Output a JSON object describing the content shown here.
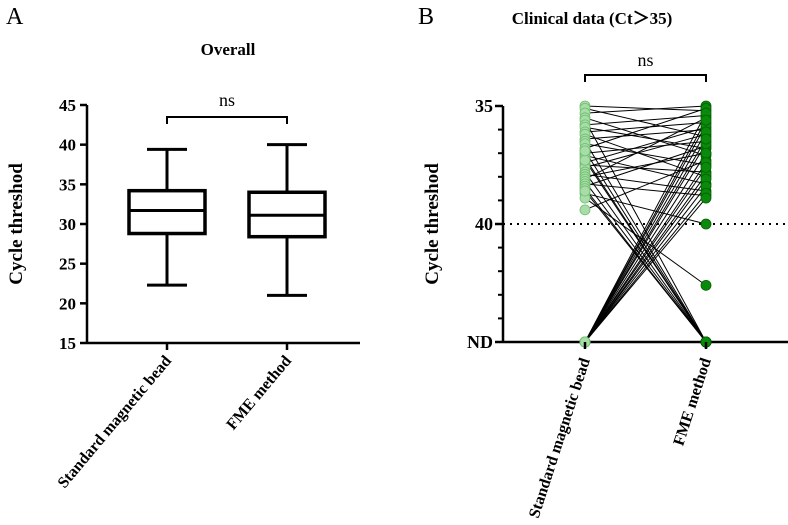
{
  "chart_data": [
    {
      "panel": "A",
      "type": "box",
      "title": "Overall",
      "ylabel": "Cycle threshod",
      "ylim": [
        15,
        45
      ],
      "yticks": [
        "15",
        "20",
        "25",
        "30",
        "35",
        "40",
        "45"
      ],
      "categories": [
        "Standard magnetic bead",
        "FME method"
      ],
      "boxes": [
        {
          "min": 22.3,
          "q1": 28.8,
          "median": 31.7,
          "q3": 34.2,
          "max": 39.4
        },
        {
          "min": 21.0,
          "q1": 28.4,
          "median": 31.1,
          "q3": 34.0,
          "max": 40.0
        }
      ],
      "significance": "ns"
    },
    {
      "panel": "B",
      "type": "paired-scatter",
      "title": "Clinical data (Ct＞35)",
      "ylabel": "Cycle threshod",
      "yaxis": {
        "top": 35,
        "reference": 40,
        "bottom_label": "ND",
        "inverted": true
      },
      "yticks": [
        "35",
        "40",
        "ND"
      ],
      "reference_line": 40,
      "categories": [
        "Standard magnetic bead",
        "FME method"
      ],
      "colors": [
        "#a8dca8",
        "#0a8a0a"
      ],
      "pairs": [
        [
          35.0,
          35.2
        ],
        [
          35.1,
          36.3
        ],
        [
          35.3,
          35.0
        ],
        [
          35.5,
          37.1
        ],
        [
          35.6,
          "ND"
        ],
        [
          35.8,
          35.4
        ],
        [
          35.9,
          36.8
        ],
        [
          36.1,
          35.7
        ],
        [
          36.2,
          38.0
        ],
        [
          36.4,
          36.0
        ],
        [
          36.5,
          "ND"
        ],
        [
          36.6,
          37.5
        ],
        [
          36.8,
          35.1
        ],
        [
          37.0,
          36.5
        ],
        [
          37.1,
          38.3
        ],
        [
          37.2,
          "ND"
        ],
        [
          37.4,
          35.9
        ],
        [
          37.5,
          37.8
        ],
        [
          37.6,
          36.2
        ],
        [
          37.8,
          "ND"
        ],
        [
          37.9,
          38.6
        ],
        [
          38.0,
          37.0
        ],
        [
          38.1,
          35.5
        ],
        [
          38.2,
          "ND"
        ],
        [
          38.3,
          38.8
        ],
        [
          38.4,
          36.7
        ],
        [
          38.5,
          "ND"
        ],
        [
          38.7,
          40.0
        ],
        [
          38.9,
          42.6
        ],
        [
          39.4,
          37.3
        ],
        [
          37.3,
          "ND"
        ],
        [
          36.9,
          "ND"
        ],
        [
          38.6,
          "ND"
        ],
        [
          "ND",
          35.3
        ],
        [
          "ND",
          35.8
        ],
        [
          "ND",
          36.1
        ],
        [
          "ND",
          36.6
        ],
        [
          "ND",
          37.0
        ],
        [
          "ND",
          37.4
        ],
        [
          "ND",
          37.9
        ],
        [
          "ND",
          38.1
        ],
        [
          "ND",
          38.4
        ],
        [
          "ND",
          38.7
        ],
        [
          "ND",
          38.9
        ],
        [
          "ND",
          36.4
        ],
        [
          "ND",
          37.6
        ],
        [
          "ND",
          35.6
        ]
      ],
      "significance": "ns"
    }
  ]
}
